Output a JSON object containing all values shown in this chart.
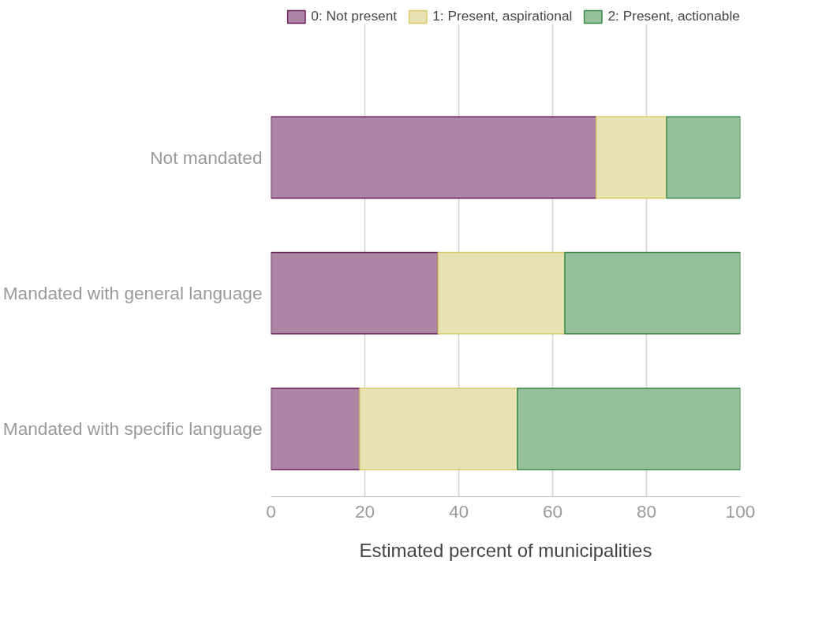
{
  "chart_data": {
    "type": "bar",
    "orientation": "horizontal",
    "stacked": true,
    "categories": [
      "Not mandated",
      "Mandated with general language",
      "Mandated with specific language"
    ],
    "series": [
      {
        "name": "0: Not present",
        "color": "#ae86a5",
        "values": [
          69.3,
          35.6,
          18.9
        ]
      },
      {
        "name": "1: Present, aspirational",
        "color": "#e8e2b4",
        "values": [
          15.0,
          27.0,
          33.6
        ]
      },
      {
        "name": "2: Present, actionable",
        "color": "#96c19c",
        "values": [
          15.7,
          37.4,
          47.5
        ]
      }
    ],
    "xlabel": "Estimated percent of municipalities",
    "xlim": [
      0,
      100
    ],
    "xticks": [
      0,
      20,
      40,
      60,
      80,
      100
    ],
    "grid": "x",
    "legend": "top right"
  }
}
